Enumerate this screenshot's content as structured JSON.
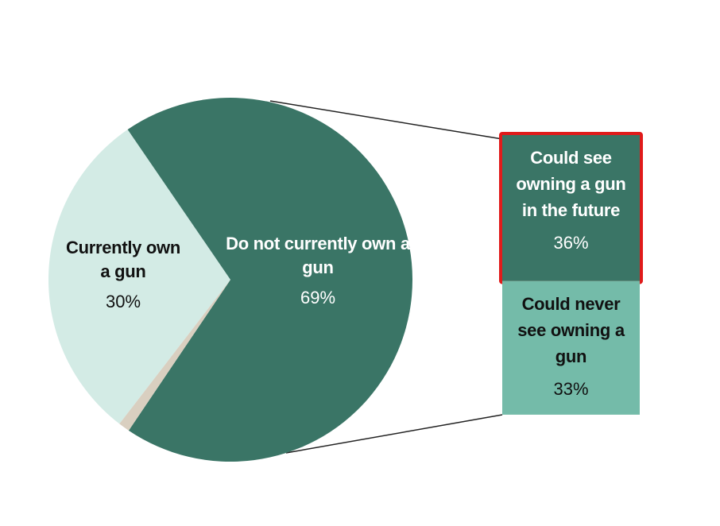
{
  "chart_data": [
    {
      "type": "pie",
      "categories": [
        "Currently own a gun",
        "Do not currently own a gun",
        null
      ],
      "values": [
        30,
        69,
        1
      ],
      "value_labels": [
        "30%",
        "69%",
        null
      ],
      "colors": [
        "#d3ebe5",
        "#3a7566",
        "#d9cfc0"
      ]
    },
    {
      "type": "bar",
      "categories": [
        "Could see owning a gun in the future",
        "Could never see owning a gun"
      ],
      "values": [
        36,
        33
      ],
      "value_labels": [
        "36%",
        "33%"
      ],
      "colors": [
        "#3a7566",
        "#74bba9"
      ]
    }
  ]
}
